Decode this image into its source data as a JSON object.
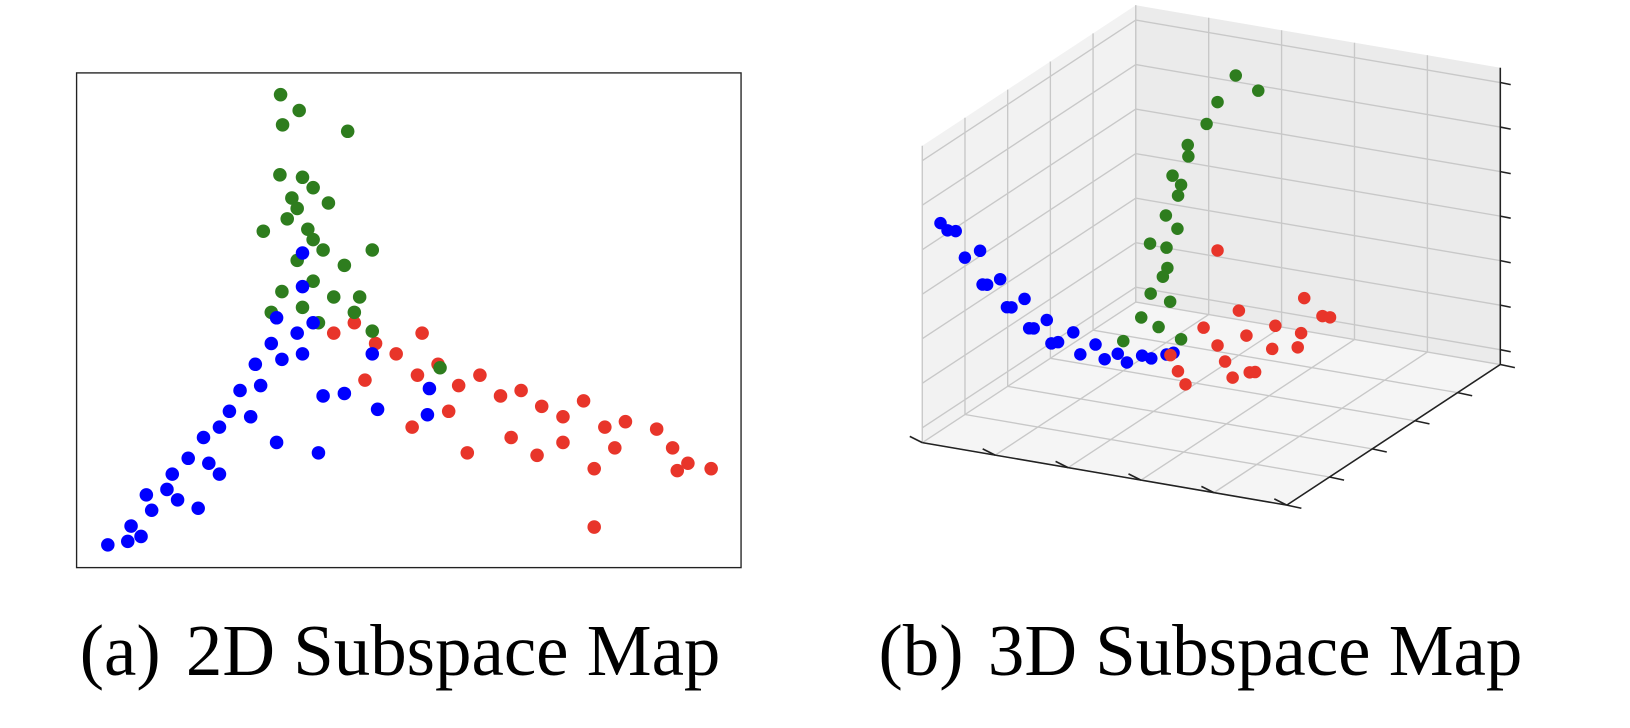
{
  "chart_data": [
    {
      "type": "scatter",
      "label": "(a)",
      "title": "2D Subspace Map",
      "xlim": [
        0,
        100
      ],
      "ylim": [
        0,
        100
      ],
      "series": [
        {
          "color": "#e8352a",
          "x": [
            38.7,
            41.8,
            45.0,
            48.1,
            52.0,
            51.3,
            54.4,
            57.5,
            60.7,
            63.8,
            66.9,
            70.0,
            73.2,
            76.3,
            79.5,
            82.6,
            81.0,
            77.9,
            87.3,
            89.7,
            92.0,
            95.5,
            90.4,
            77.9,
            58.8,
            69.3,
            50.5,
            43.4,
            56.0,
            65.4,
            73.2
          ],
          "y": [
            47.4,
            49.5,
            45.3,
            43.2,
            47.4,
            38.9,
            41.1,
            36.8,
            38.9,
            34.7,
            35.8,
            32.6,
            30.5,
            33.7,
            28.4,
            29.5,
            24.2,
            20.0,
            28.0,
            24.2,
            21.1,
            20.0,
            19.6,
            8.2,
            23.2,
            22.7,
            28.4,
            37.9,
            31.6,
            26.3,
            25.3
          ]
        },
        {
          "color": "#2e7d1e",
          "x": [
            30.7,
            33.5,
            40.8,
            31.0,
            30.6,
            34.0,
            32.4,
            35.6,
            37.9,
            31.7,
            34.8,
            28.1,
            37.1,
            44.5,
            33.2,
            40.3,
            35.6,
            30.9,
            38.7,
            34.0,
            41.8,
            36.4,
            29.3,
            33.2,
            35.6,
            42.6,
            54.7,
            44.5
          ],
          "y": [
            95.6,
            92.4,
            88.2,
            89.5,
            79.4,
            78.9,
            74.7,
            76.8,
            73.7,
            70.5,
            68.4,
            68.0,
            64.2,
            64.2,
            62.1,
            61.1,
            57.9,
            55.8,
            54.7,
            52.6,
            51.6,
            49.5,
            51.6,
            72.6,
            66.3,
            54.7,
            40.4,
            47.8
          ]
        },
        {
          "color": "#0000ff",
          "x": [
            4.7,
            7.7,
            9.7,
            8.2,
            11.3,
            10.5,
            13.6,
            18.3,
            14.4,
            16.8,
            19.9,
            19.1,
            21.5,
            23.0,
            26.2,
            24.6,
            27.7,
            30.1,
            26.9,
            30.9,
            34.0,
            29.3,
            33.2,
            35.6,
            30.1,
            34.0,
            34.0,
            36.4,
            40.3,
            44.5,
            45.3,
            53.1,
            52.8,
            37.1,
            21.5,
            15.2
          ],
          "y": [
            4.6,
            5.3,
            6.3,
            8.4,
            11.6,
            14.7,
            15.8,
            12.0,
            18.9,
            22.1,
            21.1,
            26.3,
            28.4,
            31.6,
            30.5,
            35.8,
            36.8,
            25.3,
            41.1,
            42.1,
            43.2,
            45.3,
            47.4,
            49.5,
            50.5,
            63.6,
            56.8,
            23.2,
            35.2,
            43.2,
            32.0,
            36.2,
            30.9,
            34.7,
            18.9,
            13.7
          ]
        }
      ]
    },
    {
      "type": "scatter3d",
      "label": "(b)",
      "title": "3D Subspace Map",
      "xlim": [
        0,
        1
      ],
      "ylim": [
        0,
        1
      ],
      "zlim": [
        0,
        1
      ],
      "xticks": [
        0,
        0.2,
        0.4,
        0.6,
        0.8,
        1
      ],
      "yticks": [
        0,
        0.2,
        0.4,
        0.6,
        0.8,
        1
      ],
      "zticks": [
        0.05,
        0.2,
        0.35,
        0.5,
        0.65,
        0.8,
        0.95
      ],
      "grid": true,
      "series": [
        {
          "color": "#0000ff",
          "x": [
            1.0,
            0.98,
            0.95,
            0.92,
            0.9,
            0.85,
            0.84,
            0.82,
            0.77,
            0.76,
            0.74,
            0.7,
            0.69,
            0.67,
            0.62,
            0.6,
            0.6,
            0.55,
            0.53,
            0.47,
            0.46,
            0.4,
            0.38,
            0.32,
            0.3,
            0.25
          ],
          "y": [
            0.05,
            0.08,
            0.04,
            0.07,
            0.1,
            0.09,
            0.12,
            0.06,
            0.11,
            0.14,
            0.08,
            0.13,
            0.16,
            0.1,
            0.15,
            0.18,
            0.12,
            0.17,
            0.2,
            0.19,
            0.22,
            0.21,
            0.24,
            0.23,
            0.26,
            0.25
          ],
          "z": [
            0.75,
            0.72,
            0.7,
            0.6,
            0.62,
            0.48,
            0.5,
            0.46,
            0.37,
            0.4,
            0.35,
            0.27,
            0.3,
            0.25,
            0.19,
            0.22,
            0.17,
            0.12,
            0.15,
            0.07,
            0.09,
            0.03,
            0.05,
            0.01,
            0.02,
            0.0
          ]
        },
        {
          "color": "#2e7d1e",
          "x": [
            0.3,
            0.28,
            0.3,
            0.3,
            0.32,
            0.3,
            0.34,
            0.3,
            0.28,
            0.32,
            0.3,
            0.36,
            0.3,
            0.33,
            0.3,
            0.34,
            0.3,
            0.35,
            0.32,
            0.4,
            0.3
          ],
          "y": [
            0.45,
            0.5,
            0.4,
            0.37,
            0.33,
            0.32,
            0.3,
            0.3,
            0.28,
            0.27,
            0.29,
            0.25,
            0.26,
            0.28,
            0.25,
            0.24,
            0.27,
            0.22,
            0.25,
            0.2,
            0.3
          ],
          "z": [
            1.0,
            0.95,
            0.9,
            0.82,
            0.75,
            0.7,
            0.65,
            0.6,
            0.55,
            0.5,
            0.45,
            0.42,
            0.38,
            0.33,
            0.28,
            0.24,
            0.2,
            0.16,
            0.12,
            0.1,
            0.08
          ]
        },
        {
          "color": "#e8352a",
          "x": [
            0.35,
            0.4,
            0.3,
            0.25,
            0.35,
            0.2,
            0.3,
            0.25,
            0.15,
            0.2,
            0.3,
            0.4,
            0.45,
            0.2,
            0.28,
            0.38,
            0.32,
            0.15,
            0.3
          ],
          "y": [
            0.3,
            0.35,
            0.4,
            0.45,
            0.45,
            0.5,
            0.55,
            0.6,
            0.6,
            0.65,
            0.62,
            0.5,
            0.4,
            0.4,
            0.35,
            0.55,
            0.5,
            0.55,
            0.4
          ],
          "z": [
            0.05,
            0.03,
            0.08,
            0.1,
            0.06,
            0.12,
            0.1,
            0.14,
            0.15,
            0.18,
            0.12,
            0.04,
            0.02,
            0.15,
            0.12,
            0.06,
            0.02,
            0.2,
            0.4
          ]
        }
      ]
    }
  ]
}
